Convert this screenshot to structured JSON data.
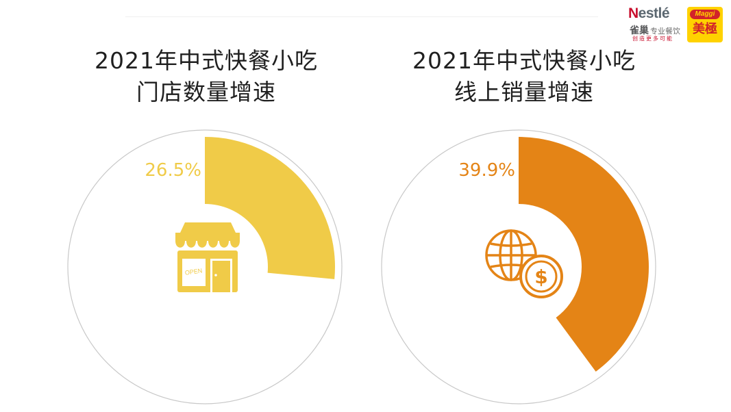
{
  "logos": {
    "nestle_wordmark": "Nestlé",
    "nestle_cn": "雀巢",
    "nestle_cn_sub": "专业餐饮",
    "nestle_slogan": "创造更多可能",
    "maggi_wordmark": "Maggi",
    "maggi_cn": "美極"
  },
  "panels": [
    {
      "title_line1": "2021年中式快餐小吃",
      "title_line2": "门店数量增速"
    },
    {
      "title_line1": "2021年中式快餐小吃",
      "title_line2": "线上销量增速"
    }
  ],
  "icons": [
    "shop-open-icon",
    "globe-dollar-icon"
  ],
  "chart_data": [
    {
      "type": "pie",
      "title": "2021年中式快餐小吃 门店数量增速",
      "values": [
        26.5
      ],
      "labels": [
        "26.5%"
      ],
      "unit": "%",
      "max": 100,
      "color": "#f0cb48",
      "track_color": "#c8c8c8"
    },
    {
      "type": "pie",
      "title": "2021年中式快餐小吃 线上销量增速",
      "values": [
        39.9
      ],
      "labels": [
        "39.9%"
      ],
      "unit": "%",
      "max": 100,
      "color": "#e48416",
      "track_color": "#c8c8c8"
    }
  ]
}
